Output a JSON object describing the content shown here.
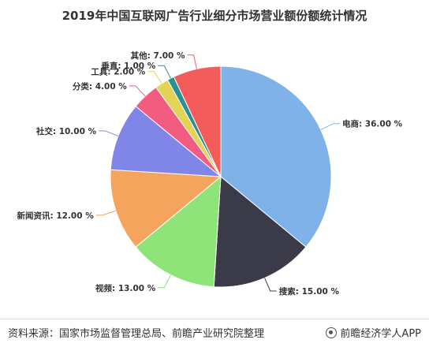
{
  "title": "2019年中国互联网广告行业细分市场营业额份额统计情况",
  "footer": {
    "source": "资料来源：国家市场监督管理总局、前瞻产业研究院整理",
    "brand": "前瞻经济学人APP"
  },
  "chart_data": {
    "type": "pie",
    "unit": "%",
    "slices": [
      {
        "label": "电商",
        "value": 36.0,
        "display": "电商: 36.00 %",
        "color": "#7fb2e8"
      },
      {
        "label": "搜索",
        "value": 15.0,
        "display": "搜索: 15.00 %",
        "color": "#3a3a48"
      },
      {
        "label": "视频",
        "value": 13.0,
        "display": "视频: 13.00 %",
        "color": "#8ee479"
      },
      {
        "label": "新闻资讯",
        "value": 12.0,
        "display": "新闻资讯: 12.00 %",
        "color": "#f4a45c"
      },
      {
        "label": "社交",
        "value": 10.0,
        "display": "社交: 10.00 %",
        "color": "#8085e8"
      },
      {
        "label": "分类",
        "value": 4.0,
        "display": "分类: 4.00 %",
        "color": "#f15c80"
      },
      {
        "label": "工具",
        "value": 2.0,
        "display": "工具: 2.00 %",
        "color": "#e4d354"
      },
      {
        "label": "垂直",
        "value": 1.0,
        "display": "垂直: 1.00 %",
        "color": "#2b908f"
      },
      {
        "label": "其他",
        "value": 7.0,
        "display": "其他: 7.00 %",
        "color": "#f45b5b"
      }
    ]
  }
}
